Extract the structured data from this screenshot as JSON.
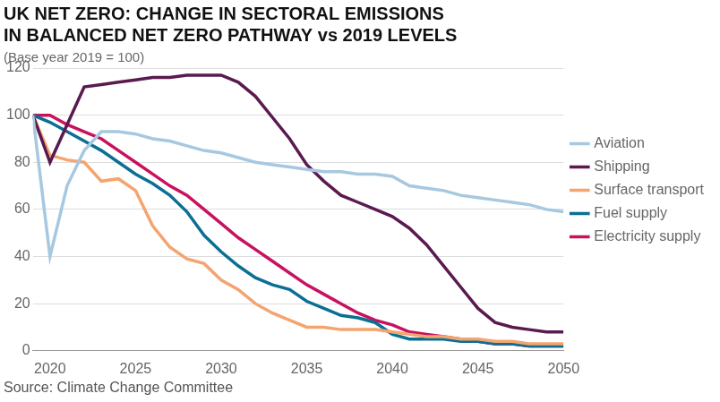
{
  "chart_data": {
    "type": "line",
    "title": [
      "UK NET ZERO: CHANGE IN SECTORAL EMISSIONS",
      "IN BALANCED NET ZERO PATHWAY vs 2019 LEVELS"
    ],
    "subtitle": "(Base year 2019 = 100)",
    "source": "Source: Climate Change Committee",
    "x": [
      2019,
      2020,
      2021,
      2022,
      2023,
      2024,
      2025,
      2026,
      2027,
      2028,
      2029,
      2030,
      2031,
      2032,
      2033,
      2034,
      2035,
      2036,
      2037,
      2038,
      2039,
      2040,
      2041,
      2042,
      2043,
      2044,
      2045,
      2046,
      2047,
      2048,
      2049,
      2050
    ],
    "series": [
      {
        "name": "Aviation",
        "color": "#a6c8e0",
        "values": [
          100,
          40,
          70,
          85,
          93,
          93,
          92,
          90,
          89,
          87,
          85,
          84,
          82,
          80,
          79,
          78,
          77,
          76,
          76,
          75,
          75,
          74,
          70,
          69,
          68,
          66,
          65,
          64,
          63,
          62,
          60,
          59
        ]
      },
      {
        "name": "Shipping",
        "color": "#5a1a4f",
        "values": [
          100,
          80,
          96,
          112,
          113,
          114,
          115,
          116,
          116,
          117,
          117,
          117,
          114,
          108,
          99,
          90,
          79,
          72,
          66,
          63,
          60,
          57,
          52,
          45,
          36,
          27,
          18,
          12,
          10,
          9,
          8,
          8
        ]
      },
      {
        "name": "Surface transport",
        "color": "#f4a46e",
        "values": [
          100,
          83,
          81,
          80,
          72,
          73,
          68,
          53,
          44,
          39,
          37,
          30,
          26,
          20,
          16,
          13,
          10,
          10,
          9,
          9,
          9,
          8,
          7,
          6,
          6,
          5,
          5,
          4,
          4,
          3,
          3,
          3
        ]
      },
      {
        "name": "Fuel supply",
        "color": "#0b6f94",
        "values": [
          100,
          97,
          93,
          89,
          85,
          80,
          75,
          71,
          66,
          59,
          49,
          42,
          36,
          31,
          28,
          26,
          21,
          18,
          15,
          14,
          12,
          7,
          5,
          5,
          5,
          4,
          4,
          3,
          3,
          2,
          2,
          2
        ]
      },
      {
        "name": "Electricity supply",
        "color": "#c8125e",
        "values": [
          100,
          100,
          96,
          93,
          90,
          85,
          80,
          75,
          70,
          66,
          60,
          54,
          48,
          43,
          38,
          33,
          28,
          24,
          20,
          16,
          13,
          11,
          8,
          7,
          6,
          5,
          4,
          3,
          3,
          2,
          2,
          2
        ]
      }
    ],
    "xlim": [
      2019,
      2050
    ],
    "xticks": [
      2020,
      2025,
      2030,
      2035,
      2040,
      2045,
      2050
    ],
    "ylim": [
      0,
      120
    ],
    "yticks": [
      0,
      20,
      40,
      60,
      80,
      100,
      120
    ],
    "grid": true,
    "legend": "right"
  }
}
